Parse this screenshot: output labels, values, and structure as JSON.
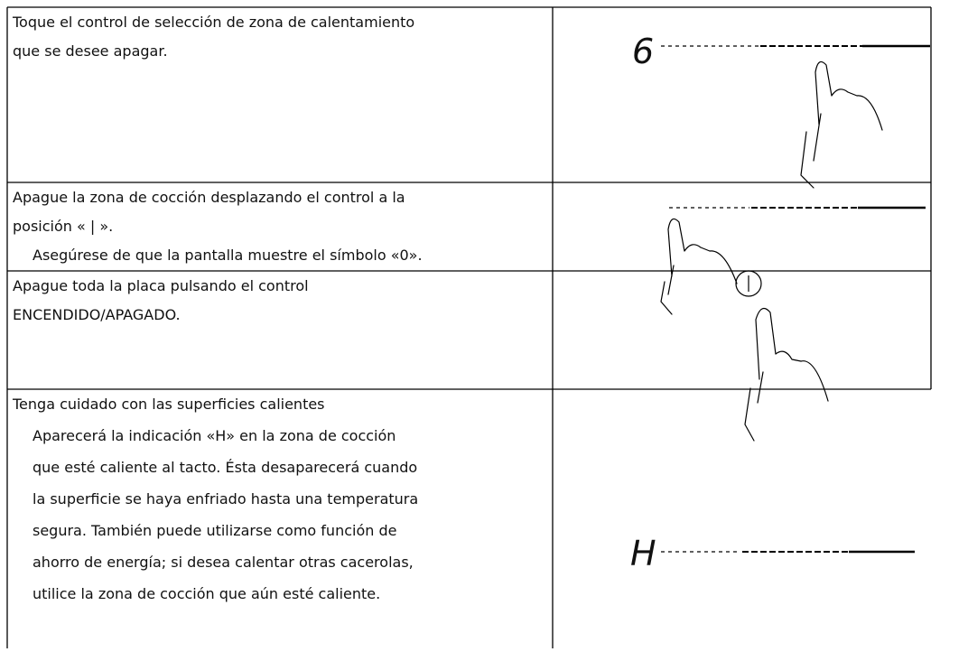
{
  "table": {
    "rows": [
      {
        "lines": [
          "Toque el control de selección de zona de calentamiento",
          "que se desee apagar."
        ],
        "display": "6"
      },
      {
        "lines": [
          "Apague la zona de cocción desplazando el control a la",
          "posición « | »."
        ],
        "note": [
          "Asegúrese de que la pantalla muestre el símbolo «0»."
        ]
      },
      {
        "lines": [
          "Apague toda la placa pulsando el control",
          "ENCENDIDO/APAGADO."
        ]
      },
      {
        "lines": [
          "Tenga cuidado con las superficies calientes"
        ],
        "note": [
          "Aparecerá la indicación «H» en la zona de cocción",
          "que esté caliente al tacto. Ésta desaparecerá cuando",
          "la superficie se haya enfriado hasta una temperatura",
          "segura. También puede utilizarse como función de",
          "ahorro de energía; si desea calentar otras cacerolas,",
          "utilice la zona de cocción que aún esté caliente."
        ],
        "display": "H"
      }
    ]
  }
}
